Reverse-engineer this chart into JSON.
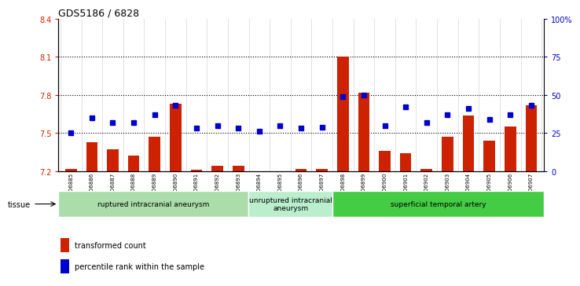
{
  "title": "GDS5186 / 6828",
  "samples": [
    "GSM1306885",
    "GSM1306886",
    "GSM1306887",
    "GSM1306888",
    "GSM1306889",
    "GSM1306890",
    "GSM1306891",
    "GSM1306892",
    "GSM1306893",
    "GSM1306894",
    "GSM1306895",
    "GSM1306896",
    "GSM1306897",
    "GSM1306898",
    "GSM1306899",
    "GSM1306900",
    "GSM1306901",
    "GSM1306902",
    "GSM1306903",
    "GSM1306904",
    "GSM1306905",
    "GSM1306906",
    "GSM1306907"
  ],
  "transformed_count": [
    7.22,
    7.43,
    7.37,
    7.32,
    7.47,
    7.73,
    7.21,
    7.24,
    7.24,
    7.2,
    7.19,
    7.22,
    7.22,
    8.1,
    7.82,
    7.36,
    7.34,
    7.22,
    7.47,
    7.64,
    7.44,
    7.55,
    7.72
  ],
  "percentile_rank": [
    25,
    35,
    32,
    32,
    37,
    43,
    28,
    30,
    28,
    26,
    30,
    28,
    29,
    49,
    50,
    30,
    42,
    32,
    37,
    41,
    34,
    37,
    43
  ],
  "groups": [
    {
      "label": "ruptured intracranial aneurysm",
      "start": 0,
      "end": 9
    },
    {
      "label": "unruptured intracranial\naneurysm",
      "start": 9,
      "end": 13
    },
    {
      "label": "superficial temporal artery",
      "start": 13,
      "end": 23
    }
  ],
  "group_colors": [
    "#aaddaa",
    "#bbeecc",
    "#44cc44"
  ],
  "ylim_left": [
    7.2,
    8.4
  ],
  "ylim_right": [
    0,
    100
  ],
  "yticks_left": [
    7.2,
    7.5,
    7.8,
    8.1,
    8.4
  ],
  "yticks_right": [
    0,
    25,
    50,
    75,
    100
  ],
  "ytick_labels_right": [
    "0",
    "25",
    "50",
    "75",
    "100%"
  ],
  "bar_color": "#cc2200",
  "dot_color": "#0000cc",
  "bar_bottom": 7.2,
  "hline_values": [
    7.5,
    7.8,
    8.1
  ],
  "bg_color": "#ffffff",
  "legend_red_label": "transformed count",
  "legend_blue_label": "percentile rank within the sample",
  "tissue_label": "tissue"
}
